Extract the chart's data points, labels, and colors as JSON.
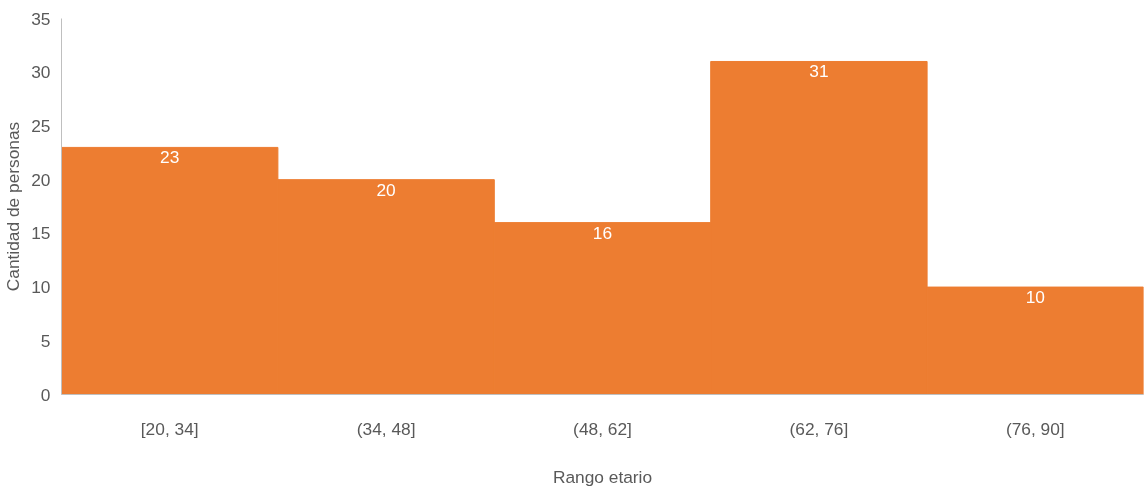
{
  "chart_data": {
    "type": "bar",
    "xlabel": "Rango etario",
    "ylabel": "Cantidad de personas",
    "categories": [
      "[20, 34]",
      "(34, 48]",
      "(48, 62]",
      "(62, 76]",
      "(76, 90]"
    ],
    "values": [
      23,
      20,
      16,
      31,
      10
    ],
    "color": "#ed7d31",
    "ylim": [
      0,
      35
    ],
    "yticks": [
      0,
      5,
      10,
      15,
      20,
      25,
      30,
      35
    ],
    "grid": false,
    "data_labels": true
  }
}
